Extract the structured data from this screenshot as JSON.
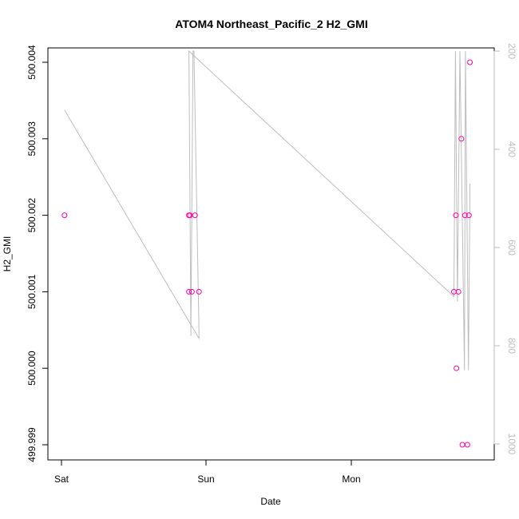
{
  "chart_data": {
    "type": "scatter",
    "title": "ATOM4 Northeast_Pacific_2 H2_GMI",
    "xlabel": "Date",
    "ylabel": "H2_GMI",
    "x_ticks": [
      "Sat",
      "Sun",
      "Mon"
    ],
    "y_ticks": [
      "499.999",
      "500.000",
      "500.001",
      "500.002",
      "500.003",
      "500.004"
    ],
    "ylim": [
      499.9988,
      500.0042
    ],
    "secondary_axis": {
      "side": "right",
      "ticks": [
        200,
        400,
        600,
        800,
        1000
      ],
      "reversed": true,
      "ylim": [
        200,
        1020
      ],
      "label": "",
      "color": "#bdbdbd"
    },
    "series": [
      {
        "kind": "points",
        "color": "#ff00aa",
        "points": [
          {
            "x": "Sat 00:30",
            "y": 500.002
          },
          {
            "x": "Sat 21:10",
            "y": 500.002
          },
          {
            "x": "Sat 21:20",
            "y": 500.002
          },
          {
            "x": "Sat 21:10",
            "y": 500.001
          },
          {
            "x": "Sat 21:40",
            "y": 500.001
          },
          {
            "x": "Sat 22:10",
            "y": 500.002
          },
          {
            "x": "Sat 22:50",
            "y": 500.001
          },
          {
            "x": "Mon 17:10",
            "y": 500.001
          },
          {
            "x": "Mon 17:30",
            "y": 500.002
          },
          {
            "x": "Mon 17:35",
            "y": 500.0
          },
          {
            "x": "Mon 17:55",
            "y": 500.001
          },
          {
            "x": "Mon 18:25",
            "y": 500.003
          },
          {
            "x": "Mon 18:35",
            "y": 499.999
          },
          {
            "x": "Mon 19:00",
            "y": 500.002
          },
          {
            "x": "Mon 19:25",
            "y": 499.999
          },
          {
            "x": "Mon 19:40",
            "y": 500.002
          },
          {
            "x": "Mon 19:50",
            "y": 500.004
          }
        ]
      },
      {
        "kind": "line",
        "axis": "right",
        "color": "#bdbdbd",
        "points": [
          {
            "x": "Sat 00:30",
            "y": 320
          },
          {
            "x": "Sat 22:50",
            "y": 785
          },
          {
            "x": "Sat 22:50",
            "y": 770
          },
          {
            "x": "Sat 22:00",
            "y": 200
          },
          {
            "x": "Sat 21:50",
            "y": 200
          },
          {
            "x": "Sat 21:30",
            "y": 780
          },
          {
            "x": "Sat 21:10",
            "y": 200
          },
          {
            "x": "Sat 21:10",
            "y": 200
          },
          {
            "x": "Mon 17:10",
            "y": 700
          },
          {
            "x": "Mon 17:25",
            "y": 200
          },
          {
            "x": "Mon 17:45",
            "y": 710
          },
          {
            "x": "Mon 18:10",
            "y": 200
          },
          {
            "x": "Mon 18:55",
            "y": 850
          },
          {
            "x": "Mon 19:05",
            "y": 200
          },
          {
            "x": "Mon 19:35",
            "y": 850
          },
          {
            "x": "Mon 19:50",
            "y": 470
          }
        ]
      }
    ]
  }
}
